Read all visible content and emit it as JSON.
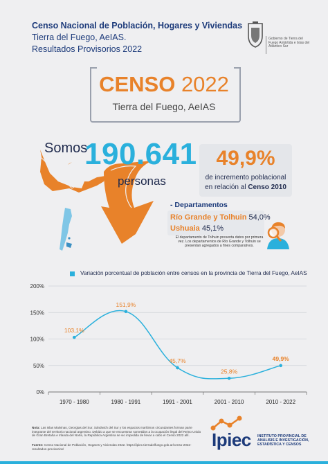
{
  "header": {
    "line1": "Censo Nacional de Población, Hogares y Viviendas",
    "line2": "Tierra del Fuego, AeIAS.",
    "line3": "Resultados Provisorios 2022",
    "gov_text": "Gobierno de Tierra del Fuego Antártida e Islas del Atlántico Sur"
  },
  "censo": {
    "title_bold": "CENSO",
    "title_year": " 2022",
    "subtitle": "Tierra del Fuego, AeIAS"
  },
  "population": {
    "somos": "Somos",
    "value": "190.641",
    "unit": "personas"
  },
  "increase": {
    "value": "49,9%",
    "line1": "de incremento poblacional",
    "line2_prefix": "en relación al ",
    "line2_bold": "Censo 2010"
  },
  "departments": {
    "title": "- Departamentos",
    "items": [
      {
        "name": "Río Grande y Tolhuin",
        "value": "54,0%"
      },
      {
        "name": "Ushuaia",
        "value": "45,1%"
      }
    ],
    "note": "El departamento de Tolhuin presenta datos por primera vez. Los departamentos de Río Grande y Tolhuin se presentan agregados a fines comparativos."
  },
  "chart_data": {
    "type": "line",
    "title": "Variación porcentual de población entre censos en la provincia de Tierra del Fuego, AeIAS",
    "categories": [
      "1970 - 1980",
      "1980 - 1991",
      "1991 - 2001",
      "2001 - 2010",
      "2010 - 2022"
    ],
    "values": [
      103.1,
      151.9,
      45.7,
      25.8,
      49.9
    ],
    "data_labels": [
      "103,1%",
      "151,9%",
      "45,7%",
      "25,8%",
      "49,9%"
    ],
    "y_ticks": [
      "0%",
      "50%",
      "100%",
      "150%",
      "200%"
    ],
    "ylim": [
      0,
      200
    ],
    "grid": true,
    "colors": {
      "line": "#2ab0dc",
      "label": "#e8822a"
    }
  },
  "footer": {
    "note_label": "Nota:",
    "note": "Las Islas Malvinas, Georgias del Sur, Sándwich del Sur y los espacios marítimos circundantes forman parte integrante del territorio nacional argentino. Debido a que se encuentran sometidos a la ocupación ilegal del Reino Unido de Gran Bretaña e Irlanda del Norte, la República Argentina se vio impedida de llevar a cabo el Censo 2022 allí.",
    "source_label": "Fuente:",
    "source": "Censo Nacional de Población, Hogares y Viviendas 2022. https://ipiec.tierradelfuego.gob.ar/censo-2022-resultados-provisorios/",
    "logo_text": "Ipiec",
    "logo_sub": "INSTITUTO PROVINCIAL DE ANÁLISIS E INVESTIGACIÓN, ESTADÍSTICA Y CENSOS"
  }
}
